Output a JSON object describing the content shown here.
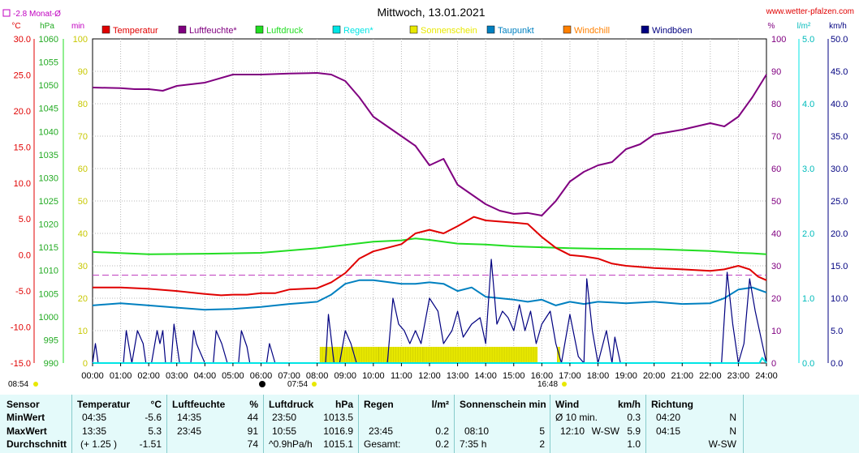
{
  "title": "Mittwoch, 13.01.2021",
  "website": "www.wetter-pfalzen.com",
  "reference_label": "-2.8 Monat-Ø",
  "units": {
    "temp": "°C",
    "press": "hPa",
    "sun": "min",
    "hum": "%",
    "rain": "l/m²",
    "wind": "km/h"
  },
  "legend": [
    {
      "label": "Temperatur",
      "color": "#e00000"
    },
    {
      "label": "Luftfeuchte*",
      "color": "#800080"
    },
    {
      "label": "Luftdruck",
      "color": "#22dd22"
    },
    {
      "label": "Regen*",
      "color": "#00e5e5"
    },
    {
      "label": "Sonnenschein",
      "color": "#e8e800"
    },
    {
      "label": "Taupunkt",
      "color": "#0080c0"
    },
    {
      "label": "Windchill",
      "color": "#ff8000"
    },
    {
      "label": "Windböen",
      "color": "#000080"
    }
  ],
  "sun_events": {
    "sunrise": "08:54",
    "sunset": "16:48",
    "sunshine_start": "07:54",
    "moon_time": "06:00"
  },
  "chart_data": {
    "type": "line",
    "title": "Mittwoch, 13.01.2021",
    "x_ticks": [
      "00:00",
      "01:00",
      "02:00",
      "03:00",
      "04:00",
      "05:00",
      "06:00",
      "07:00",
      "08:00",
      "09:00",
      "10:00",
      "11:00",
      "12:00",
      "13:00",
      "14:00",
      "15:00",
      "16:00",
      "17:00",
      "18:00",
      "19:00",
      "20:00",
      "21:00",
      "22:00",
      "23:00",
      "24:00"
    ],
    "xlim": [
      0,
      24
    ],
    "axes": {
      "temp": {
        "label": "°C",
        "ylim": [
          -15,
          30
        ],
        "ticks": [
          "30.0",
          "25.0",
          "20.0",
          "15.0",
          "10.0",
          "5.0",
          "0.0",
          "-5.0",
          "-10.0",
          "-15.0"
        ]
      },
      "press": {
        "label": "hPa",
        "ylim": [
          990,
          1060
        ],
        "ticks": [
          "1060",
          "1055",
          "1050",
          "1045",
          "1040",
          "1035",
          "1030",
          "1025",
          "1020",
          "1015",
          "1010",
          "1005",
          "1000",
          "995",
          "990"
        ]
      },
      "sun": {
        "label": "min",
        "ylim": [
          0,
          100
        ],
        "ticks": [
          "100",
          "90",
          "80",
          "70",
          "60",
          "50",
          "40",
          "30",
          "20",
          "10",
          "0"
        ]
      },
      "hum": {
        "label": "%",
        "ylim": [
          0,
          100
        ],
        "ticks": [
          "100",
          "90",
          "80",
          "70",
          "60",
          "50",
          "40",
          "30",
          "20",
          "10",
          "0"
        ]
      },
      "rain": {
        "label": "l/m²",
        "ylim": [
          0,
          5
        ],
        "ticks": [
          "5.0",
          "4.0",
          "3.0",
          "2.0",
          "1.0",
          "0.0"
        ]
      },
      "wind": {
        "label": "km/h",
        "ylim": [
          0,
          50
        ],
        "ticks": [
          "50.0",
          "45.0",
          "40.0",
          "35.0",
          "30.0",
          "25.0",
          "20.0",
          "15.0",
          "10.0",
          "5.0",
          "0.0"
        ]
      }
    },
    "reference_line": {
      "axis": "temp",
      "value": -2.8,
      "label": "-2.8 Monat-Ø"
    },
    "series": [
      {
        "name": "Luftfeuchte*",
        "axis": "hum",
        "color": "#800080",
        "points": [
          [
            0,
            85
          ],
          [
            1,
            84.8
          ],
          [
            1.5,
            84.5
          ],
          [
            2,
            84.5
          ],
          [
            2.5,
            84
          ],
          [
            3,
            85.5
          ],
          [
            4,
            86.5
          ],
          [
            5,
            89
          ],
          [
            6,
            89
          ],
          [
            7,
            89.3
          ],
          [
            8,
            89.5
          ],
          [
            8.5,
            89
          ],
          [
            9,
            87
          ],
          [
            9.5,
            82
          ],
          [
            10,
            76
          ],
          [
            11,
            70
          ],
          [
            11.5,
            67
          ],
          [
            12,
            61
          ],
          [
            12.5,
            63
          ],
          [
            13,
            55
          ],
          [
            13.5,
            52
          ],
          [
            14,
            49
          ],
          [
            14.5,
            47
          ],
          [
            15,
            46
          ],
          [
            15.5,
            46.3
          ],
          [
            16,
            45.5
          ],
          [
            16.5,
            50
          ],
          [
            17,
            56
          ],
          [
            17.5,
            59
          ],
          [
            18,
            61
          ],
          [
            18.5,
            62
          ],
          [
            19,
            66
          ],
          [
            19.5,
            67.5
          ],
          [
            20,
            70.5
          ],
          [
            21,
            72
          ],
          [
            22,
            74
          ],
          [
            22.5,
            73
          ],
          [
            23,
            76
          ],
          [
            23.5,
            82
          ],
          [
            24,
            89
          ]
        ]
      },
      {
        "name": "Luftdruck",
        "axis": "press",
        "color": "#22dd22",
        "points": [
          [
            0,
            1014
          ],
          [
            2,
            1013.5
          ],
          [
            4,
            1013.6
          ],
          [
            6,
            1013.8
          ],
          [
            8,
            1014.8
          ],
          [
            10,
            1016.2
          ],
          [
            11,
            1016.5
          ],
          [
            11.5,
            1016.9
          ],
          [
            12,
            1016.6
          ],
          [
            13,
            1015.8
          ],
          [
            14,
            1015.6
          ],
          [
            15,
            1015.2
          ],
          [
            16,
            1015
          ],
          [
            17,
            1014.8
          ],
          [
            18,
            1014.7
          ],
          [
            20,
            1014.6
          ],
          [
            22,
            1014.2
          ],
          [
            23,
            1013.8
          ],
          [
            23.5,
            1013.7
          ],
          [
            24,
            1013.5
          ]
        ]
      },
      {
        "name": "Temperatur",
        "axis": "temp",
        "color": "#e00000",
        "points": [
          [
            0,
            -4.5
          ],
          [
            1,
            -4.5
          ],
          [
            2,
            -4.7
          ],
          [
            3,
            -5
          ],
          [
            4,
            -5.4
          ],
          [
            4.58,
            -5.6
          ],
          [
            5,
            -5.5
          ],
          [
            5.5,
            -5.5
          ],
          [
            6,
            -5.3
          ],
          [
            6.5,
            -5.3
          ],
          [
            7,
            -4.8
          ],
          [
            8,
            -4.6
          ],
          [
            8.5,
            -3.8
          ],
          [
            9,
            -2.5
          ],
          [
            9.5,
            -0.5
          ],
          [
            10,
            0.5
          ],
          [
            10.5,
            1
          ],
          [
            11,
            1.5
          ],
          [
            11.5,
            3
          ],
          [
            12,
            3.5
          ],
          [
            12.5,
            3
          ],
          [
            13,
            4
          ],
          [
            13.58,
            5.3
          ],
          [
            14,
            4.8
          ],
          [
            15,
            4.5
          ],
          [
            15.5,
            4.3
          ],
          [
            16,
            2.5
          ],
          [
            16.5,
            1
          ],
          [
            17,
            0
          ],
          [
            17.5,
            -0.2
          ],
          [
            18,
            -0.5
          ],
          [
            18.5,
            -1.2
          ],
          [
            19,
            -1.5
          ],
          [
            20,
            -1.8
          ],
          [
            21,
            -2
          ],
          [
            22,
            -2.2
          ],
          [
            22.5,
            -2
          ],
          [
            23,
            -1.5
          ],
          [
            23.4,
            -2
          ],
          [
            23.7,
            -3
          ],
          [
            24,
            -3.5
          ]
        ]
      },
      {
        "name": "Taupunkt",
        "axis": "temp",
        "color": "#0080c0",
        "points": [
          [
            0,
            -7
          ],
          [
            1,
            -6.7
          ],
          [
            2,
            -7
          ],
          [
            3,
            -7.3
          ],
          [
            4,
            -7.6
          ],
          [
            5,
            -7.5
          ],
          [
            6,
            -7.2
          ],
          [
            7,
            -6.8
          ],
          [
            8,
            -6.5
          ],
          [
            8.5,
            -5.5
          ],
          [
            9,
            -4
          ],
          [
            9.5,
            -3.5
          ],
          [
            10,
            -3.5
          ],
          [
            11,
            -4
          ],
          [
            11.5,
            -4
          ],
          [
            12,
            -3.8
          ],
          [
            12.5,
            -4
          ],
          [
            13,
            -5
          ],
          [
            13.5,
            -4.5
          ],
          [
            14,
            -5.8
          ],
          [
            14.5,
            -6
          ],
          [
            15,
            -6.2
          ],
          [
            15.5,
            -6.5
          ],
          [
            16,
            -6.2
          ],
          [
            16.5,
            -7
          ],
          [
            17,
            -6.5
          ],
          [
            17.5,
            -6.8
          ],
          [
            18,
            -6.5
          ],
          [
            19,
            -6.7
          ],
          [
            20,
            -6.5
          ],
          [
            21,
            -6.8
          ],
          [
            22,
            -6.7
          ],
          [
            22.5,
            -6
          ],
          [
            23,
            -4.8
          ],
          [
            23.5,
            -4.5
          ],
          [
            24,
            -5.2
          ]
        ]
      },
      {
        "name": "Windböen",
        "axis": "wind",
        "color": "#000080",
        "points": [
          [
            0,
            0
          ],
          [
            0.1,
            3
          ],
          [
            0.2,
            0
          ],
          [
            1.1,
            0
          ],
          [
            1.2,
            5
          ],
          [
            1.4,
            0
          ],
          [
            1.6,
            5
          ],
          [
            1.8,
            3
          ],
          [
            1.9,
            0
          ],
          [
            2.1,
            0
          ],
          [
            2.3,
            5
          ],
          [
            2.4,
            3
          ],
          [
            2.5,
            5
          ],
          [
            2.6,
            0
          ],
          [
            2.8,
            0
          ],
          [
            2.9,
            6
          ],
          [
            3.1,
            0
          ],
          [
            3.5,
            0
          ],
          [
            3.6,
            5
          ],
          [
            3.7,
            3
          ],
          [
            4,
            0
          ],
          [
            4.3,
            0
          ],
          [
            4.4,
            5
          ],
          [
            4.6,
            3
          ],
          [
            4.8,
            0
          ],
          [
            5.2,
            0
          ],
          [
            5.3,
            5
          ],
          [
            5.5,
            2.5
          ],
          [
            5.6,
            0
          ],
          [
            6.2,
            0
          ],
          [
            6.3,
            3
          ],
          [
            6.5,
            0
          ],
          [
            8.3,
            0
          ],
          [
            8.4,
            7.5
          ],
          [
            8.6,
            0
          ],
          [
            8.8,
            0
          ],
          [
            9,
            5
          ],
          [
            9.2,
            3
          ],
          [
            9.4,
            0
          ],
          [
            10.5,
            0
          ],
          [
            10.7,
            10
          ],
          [
            10.9,
            6
          ],
          [
            11.1,
            5
          ],
          [
            11.3,
            3
          ],
          [
            11.5,
            5
          ],
          [
            11.7,
            3
          ],
          [
            12,
            10
          ],
          [
            12.3,
            8
          ],
          [
            12.5,
            3
          ],
          [
            12.8,
            5
          ],
          [
            13,
            8
          ],
          [
            13.2,
            4
          ],
          [
            13.5,
            6
          ],
          [
            13.8,
            7
          ],
          [
            14,
            3
          ],
          [
            14.2,
            16
          ],
          [
            14.4,
            6
          ],
          [
            14.6,
            8
          ],
          [
            14.8,
            7
          ],
          [
            15,
            5
          ],
          [
            15.2,
            9
          ],
          [
            15.4,
            5
          ],
          [
            15.6,
            8
          ],
          [
            15.8,
            3
          ],
          [
            16,
            6
          ],
          [
            16.3,
            8
          ],
          [
            16.5,
            3
          ],
          [
            16.7,
            0
          ],
          [
            17,
            7.5
          ],
          [
            17.3,
            1
          ],
          [
            17.5,
            0
          ],
          [
            17.6,
            13
          ],
          [
            17.8,
            5
          ],
          [
            18,
            0
          ],
          [
            18.3,
            5
          ],
          [
            18.5,
            0
          ],
          [
            18.6,
            4
          ],
          [
            18.8,
            0
          ],
          [
            22.4,
            0
          ],
          [
            22.6,
            14
          ],
          [
            22.8,
            6
          ],
          [
            23,
            0
          ],
          [
            23.2,
            3
          ],
          [
            23.4,
            13
          ],
          [
            23.6,
            8
          ],
          [
            23.8,
            4
          ],
          [
            24,
            0
          ]
        ]
      },
      {
        "name": "Regen*",
        "axis": "rain",
        "color": "#00e5e5",
        "points": [
          [
            0,
            0
          ],
          [
            23.75,
            0
          ],
          [
            23.85,
            0.08
          ],
          [
            24,
            0
          ]
        ]
      }
    ],
    "sunshine_minutes": {
      "axis": "sun",
      "color": "#e8e800",
      "bars": [
        [
          8.1,
          10.2,
          5
        ],
        [
          10.2,
          11.8,
          5
        ],
        [
          11.8,
          15.85,
          5
        ],
        [
          16.55,
          16.65,
          5
        ]
      ]
    }
  },
  "stats": {
    "headers": {
      "sensor": "Sensor",
      "temp": "Temperatur",
      "temp_u": "°C",
      "hum": "Luftfeuchte",
      "hum_u": "%",
      "press": "Luftdruck",
      "press_u": "hPa",
      "rain": "Regen",
      "rain_u": "l/m²",
      "sun": "Sonnenschein min",
      "wind": "Wind",
      "wind_u": "km/h",
      "dir": "Richtung"
    },
    "labels": {
      "min": "MinWert",
      "max": "MaxWert",
      "avg": "Durchschnitt"
    },
    "min": {
      "temp_t": "04:35",
      "temp_v": "-5.6",
      "hum_t": "14:35",
      "hum_v": "44",
      "press_t": "23:50",
      "press_v": "1013.5",
      "rain_t": "",
      "rain_v": "",
      "sun_t": "",
      "sun_v": "",
      "wind_t": "Ø 10 min.",
      "wind_v": "0.3",
      "dir_t": "04:20",
      "dir_v": "N"
    },
    "max": {
      "temp_t": "13:35",
      "temp_v": "5.3",
      "hum_t": "23:45",
      "hum_v": "91",
      "press_t": "10:55",
      "press_v": "1016.9",
      "rain_t": "23:45",
      "rain_v": "0.2",
      "sun_t": "08:10",
      "sun_v": "5",
      "wind_t": "12:10",
      "wind_dir": "W-SW",
      "wind_v": "5.9",
      "dir_t": "04:15",
      "dir_v": "N"
    },
    "avg": {
      "temp_t": "(+ 1.25 )",
      "temp_v": "-1.51",
      "hum_t": "",
      "hum_v": "74",
      "press_t": "^0.9hPa/h",
      "press_v": "1015.1",
      "rain_t": "Gesamt:",
      "rain_v": "0.2",
      "sun_t": "7:35 h",
      "sun_v": "2",
      "wind_t": "",
      "wind_v": "1.0",
      "dir_t": "",
      "dir_v": "W-SW"
    }
  }
}
